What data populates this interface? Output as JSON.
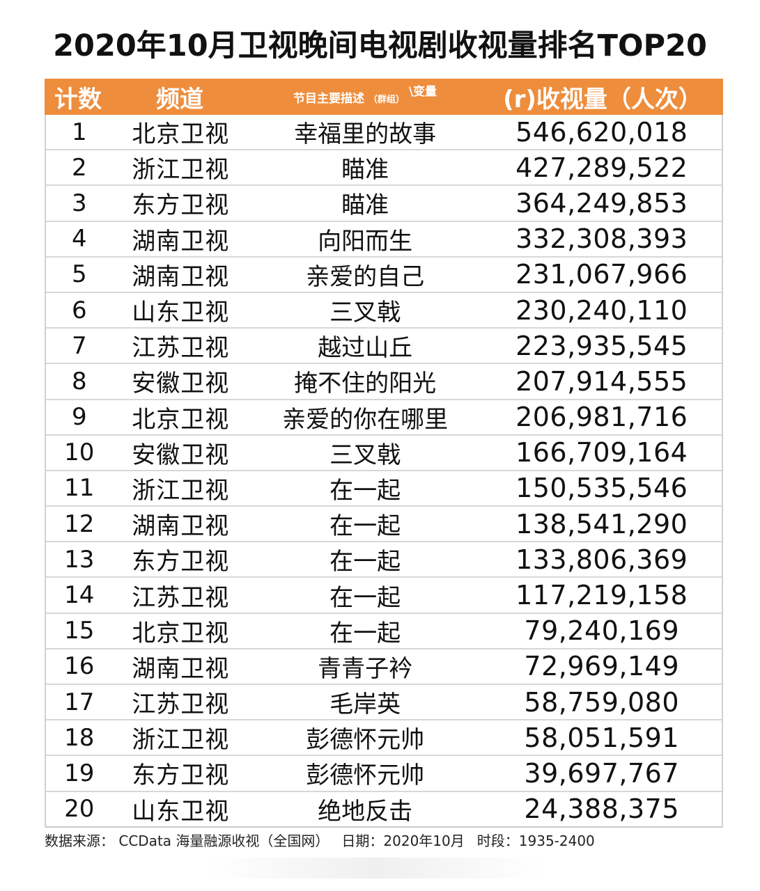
{
  "title": "2020年10月卫视晚间电视剧收视量排名TOP20",
  "header": {
    "rank": "计数",
    "channel": "频道",
    "desc": "节目主要描述",
    "desc_hint": "（群组）",
    "desc_sup": "\\变量",
    "views": "(r)收视量（人次）"
  },
  "rows": [
    {
      "rank": "1",
      "channel": "北京卫视",
      "program": "幸福里的故事",
      "views": "546,620,018"
    },
    {
      "rank": "2",
      "channel": "浙江卫视",
      "program": "瞄准",
      "views": "427,289,522"
    },
    {
      "rank": "3",
      "channel": "东方卫视",
      "program": "瞄准",
      "views": "364,249,853"
    },
    {
      "rank": "4",
      "channel": "湖南卫视",
      "program": "向阳而生",
      "views": "332,308,393"
    },
    {
      "rank": "5",
      "channel": "湖南卫视",
      "program": "亲爱的自己",
      "views": "231,067,966"
    },
    {
      "rank": "6",
      "channel": "山东卫视",
      "program": "三叉戟",
      "views": "230,240,110"
    },
    {
      "rank": "7",
      "channel": "江苏卫视",
      "program": "越过山丘",
      "views": "223,935,545"
    },
    {
      "rank": "8",
      "channel": "安徽卫视",
      "program": "掩不住的阳光",
      "views": "207,914,555"
    },
    {
      "rank": "9",
      "channel": "北京卫视",
      "program": "亲爱的你在哪里",
      "views": "206,981,716"
    },
    {
      "rank": "10",
      "channel": "安徽卫视",
      "program": "三叉戟",
      "views": "166,709,164"
    },
    {
      "rank": "11",
      "channel": "浙江卫视",
      "program": "在一起",
      "views": "150,535,546"
    },
    {
      "rank": "12",
      "channel": "湖南卫视",
      "program": "在一起",
      "views": "138,541,290"
    },
    {
      "rank": "13",
      "channel": "东方卫视",
      "program": "在一起",
      "views": "133,806,369"
    },
    {
      "rank": "14",
      "channel": "江苏卫视",
      "program": "在一起",
      "views": "117,219,158"
    },
    {
      "rank": "15",
      "channel": "北京卫视",
      "program": "在一起",
      "views": "79,240,169"
    },
    {
      "rank": "16",
      "channel": "湖南卫视",
      "program": "青青子衿",
      "views": "72,969,149"
    },
    {
      "rank": "17",
      "channel": "江苏卫视",
      "program": "毛岸英",
      "views": "58,759,080"
    },
    {
      "rank": "18",
      "channel": "浙江卫视",
      "program": "彭德怀元帅",
      "views": "58,051,591"
    },
    {
      "rank": "19",
      "channel": "东方卫视",
      "program": "彭德怀元帅",
      "views": "39,697,767"
    },
    {
      "rank": "20",
      "channel": "山东卫视",
      "program": "绝地反击",
      "views": "24,388,375"
    }
  ],
  "footer": {
    "source": "数据来源：  CCData 海量融源收视（全国网）",
    "date": "日期：2020年10月",
    "period": "时段：1935-2400"
  },
  "colors": {
    "header_bg": "#ee8d3c",
    "header_text": "#ffffff"
  }
}
